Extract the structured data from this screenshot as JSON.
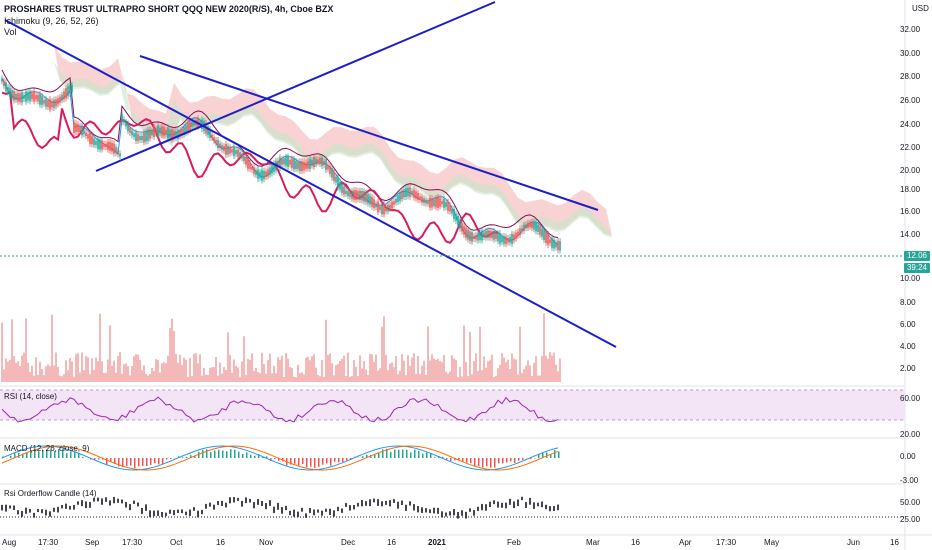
{
  "header": {
    "title": "PROSHARES TRUST ULTRAPRO SHORT QQQ NEW 2020(R/S), 4h, Cboe BZX",
    "indicator1": "Ichimoku (9, 26, 52, 26)",
    "indicator2": "Vol"
  },
  "currency": "USD",
  "price_axis": [
    "32.00",
    "30.00",
    "28.00",
    "26.00",
    "24.00",
    "22.00",
    "20.00",
    "18.00",
    "16.00",
    "14.00",
    "10.00",
    "8.00",
    "6.00",
    "4.00",
    "2.00"
  ],
  "last_price": "12.06",
  "countdown": "39:24",
  "panes": {
    "rsi": {
      "title": "RSI (14, close)",
      "axis": [
        "60.00",
        "20.00"
      ]
    },
    "macd": {
      "title": "MACD (12, 26, close, 9)",
      "axis": [
        "0.00",
        "-3.00"
      ]
    },
    "orderflow": {
      "title": "Rsi Orderflow Candle (14)",
      "axis": [
        "50.00",
        "25.00"
      ]
    }
  },
  "time_axis": [
    "Aug",
    "17:30",
    "Sep",
    "17:30",
    "Oct",
    "16",
    "Nov",
    "Dec",
    "16",
    "2021",
    "Feb",
    "Mar",
    "16",
    "Apr",
    "17:30",
    "May",
    "Jun",
    "16"
  ],
  "colors": {
    "trendline": "#1b1fc4",
    "price_line": "#d81b60",
    "cloud_bear": "#f8c8c8",
    "cloud_bull": "#c8e6c9",
    "tenkan": "#2196f3",
    "kijun": "#880e4f",
    "rsi": "#9c27b0",
    "rsi_band": "#f3e5f5",
    "macd": "#2196f3",
    "signal": "#ff6d00",
    "volume": "#ef9a9a",
    "last_price_bg": "#26a69a",
    "countdown_bg": "#26a69a"
  }
}
